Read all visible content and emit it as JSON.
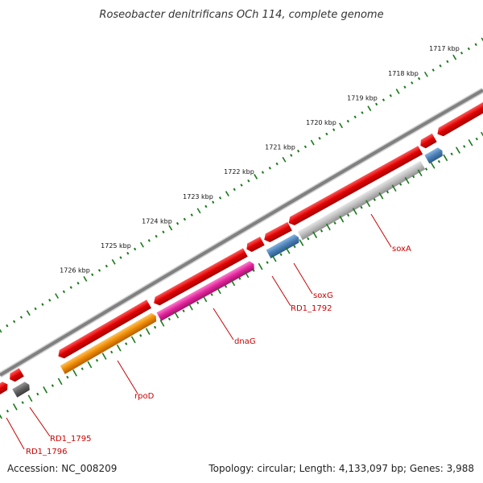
{
  "title": "Roseobacter denitrificans OCh 114, complete genome",
  "footer": {
    "accession": "Accession: NC_008209",
    "summary": "Topology: circular; Length: 4,133,097 bp; Genes: 3,988"
  },
  "scale": {
    "unit": "kbp",
    "tick_color": "#1a7a1a",
    "ticks": [
      {
        "label": "1717 kbp"
      },
      {
        "label": "1718 kbp"
      },
      {
        "label": "1719 kbp"
      },
      {
        "label": "1720 kbp"
      },
      {
        "label": "1721 kbp"
      },
      {
        "label": "1722 kbp"
      },
      {
        "label": "1723 kbp"
      },
      {
        "label": "1724 kbp"
      },
      {
        "label": "1725 kbp"
      },
      {
        "label": "1726 kbp"
      }
    ]
  },
  "genes": [
    {
      "name": "soxA",
      "color": "#bdbdbd",
      "strand": "reverse"
    },
    {
      "name": "soxG",
      "color": "#4a7fb5",
      "strand": "reverse"
    },
    {
      "name": "RD1_1792",
      "color": "#e00000",
      "strand": "forward"
    },
    {
      "name": "dnaG",
      "color": "#e0249a",
      "strand": "reverse"
    },
    {
      "name": "rpoD",
      "color": "#ee8800",
      "strand": "reverse"
    },
    {
      "name": "RD1_1795",
      "color": "#606060",
      "strand": "reverse"
    },
    {
      "name": "RD1_1796",
      "color": "#e00000",
      "strand": "forward"
    }
  ],
  "colors": {
    "label_text": "#cc0000",
    "backbone": "#808080",
    "forward_feature": "#e00000"
  }
}
